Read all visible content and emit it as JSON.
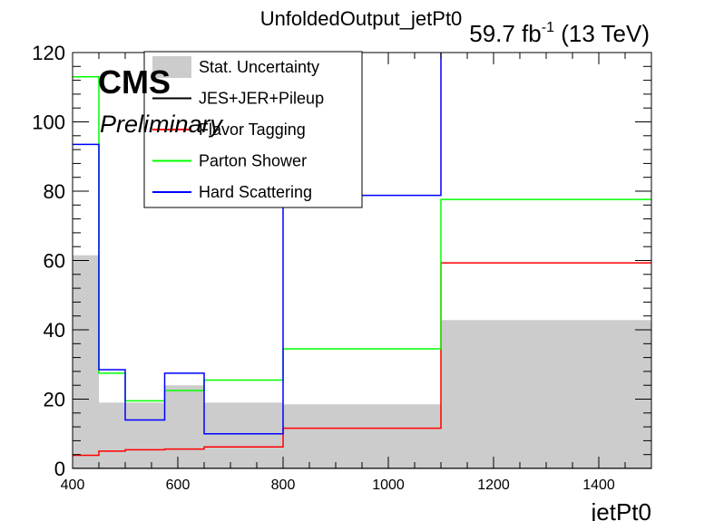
{
  "chart_data": {
    "type": "histogram-step",
    "title": "UnfoldedOutput_jetPt0",
    "lumi_text": "59.7 fb",
    "lumi_sup": "-1",
    "energy_text": " (13 TeV)",
    "cms_label": "CMS",
    "preliminary_label": "Preliminary",
    "xlabel": "jetPt0",
    "ylabel": "",
    "xlim": [
      400,
      1500
    ],
    "ylim": [
      0,
      120
    ],
    "x_ticks": [
      400,
      600,
      800,
      1000,
      1200,
      1400
    ],
    "y_ticks": [
      0,
      20,
      40,
      60,
      80,
      100,
      120
    ],
    "bin_edges": [
      400,
      450,
      500,
      575,
      650,
      800,
      1100,
      1500
    ],
    "stat_uncertainty": [
      61.5,
      19.0,
      19.0,
      24.0,
      19.0,
      18.5,
      42.8
    ],
    "series": [
      {
        "name": "JES+JER+Pileup",
        "color": "#000000",
        "values": [
          0,
          0,
          0,
          0,
          0,
          0,
          0
        ]
      },
      {
        "name": "Flavor Tagging",
        "color": "#ff0000",
        "values": [
          3.8,
          5.0,
          5.4,
          5.6,
          6.2,
          11.6,
          59.3
        ]
      },
      {
        "name": "Parton Shower",
        "color": "#00ff00",
        "values": [
          113.0,
          27.5,
          19.5,
          22.5,
          25.5,
          34.5,
          77.6
        ]
      },
      {
        "name": "Hard Scattering",
        "color": "#0000ff",
        "values": [
          93.5,
          28.5,
          14.0,
          27.5,
          10.0,
          78.8,
          130.0
        ]
      }
    ],
    "legend": {
      "placement": "top-left",
      "entries": [
        {
          "label": "Stat. Uncertainty",
          "kind": "fill",
          "color": "#cccccc"
        },
        {
          "label": "JES+JER+Pileup",
          "kind": "line",
          "color": "#000000"
        },
        {
          "label": "Flavor Tagging",
          "kind": "line",
          "color": "#ff0000"
        },
        {
          "label": "Parton Shower",
          "kind": "line",
          "color": "#00ff00"
        },
        {
          "label": "Hard Scattering",
          "kind": "line",
          "color": "#0000ff"
        }
      ]
    },
    "stat_fill_color": "#cccccc",
    "grid": false
  }
}
